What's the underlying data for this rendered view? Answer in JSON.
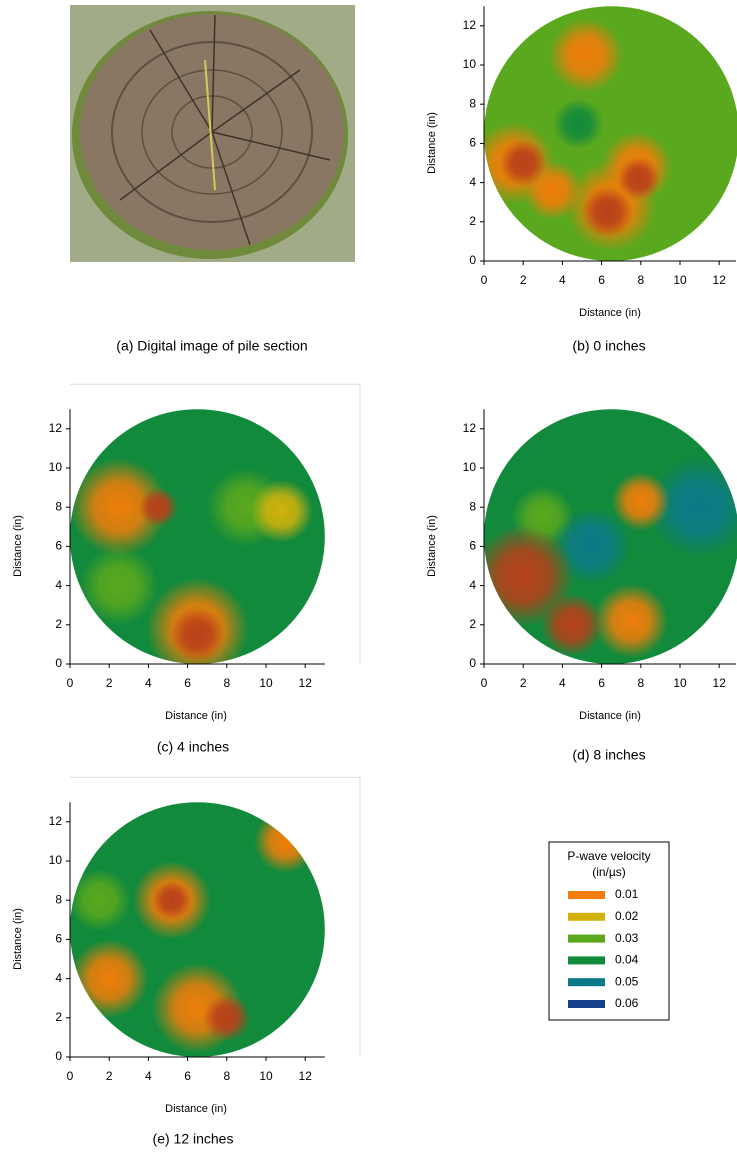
{
  "photo": {
    "caption": "(a) Digital image of pile section"
  },
  "chart_data": [
    {
      "type": "heatmap",
      "caption": "(b) 0 inches",
      "xlabel": "Distance (in)",
      "ylabel": "Distance (in)",
      "xlim": [
        0,
        13
      ],
      "ylim": [
        0,
        13
      ],
      "xticks": [
        0,
        2,
        4,
        6,
        8,
        10,
        12
      ],
      "yticks": [
        0,
        2,
        4,
        6,
        8,
        10,
        12
      ],
      "base_value": 0.03,
      "blobs": [
        {
          "x": 4.8,
          "y": 7,
          "r": 1.3,
          "value": 0.04
        },
        {
          "x": 5.2,
          "y": 10.5,
          "r": 1.9,
          "value": 0.01
        },
        {
          "x": 1.5,
          "y": 5,
          "r": 2.1,
          "value": 0.01
        },
        {
          "x": 3.5,
          "y": 3.6,
          "r": 1.5,
          "value": 0.01
        },
        {
          "x": 6.5,
          "y": 2.8,
          "r": 2.3,
          "value": 0.01
        },
        {
          "x": 7.8,
          "y": 4.8,
          "r": 1.8,
          "value": 0.01
        },
        {
          "x": 2,
          "y": 5,
          "r": 1.2,
          "value": 0.005
        },
        {
          "x": 6.3,
          "y": 2.5,
          "r": 1.3,
          "value": 0.005
        },
        {
          "x": 7.9,
          "y": 4.2,
          "r": 1.1,
          "value": 0.005
        }
      ]
    },
    {
      "type": "heatmap",
      "caption": "(c) 4 inches",
      "xlabel": "Distance (in)",
      "ylabel": "Distance (in)",
      "xlim": [
        0,
        13
      ],
      "ylim": [
        0,
        13
      ],
      "xticks": [
        0,
        2,
        4,
        6,
        8,
        10,
        12
      ],
      "yticks": [
        0,
        2,
        4,
        6,
        8,
        10,
        12
      ],
      "base_value": 0.04,
      "blobs": [
        {
          "x": 2.5,
          "y": 4,
          "r": 2,
          "value": 0.03
        },
        {
          "x": 9,
          "y": 8,
          "r": 2,
          "value": 0.03
        },
        {
          "x": 2.5,
          "y": 8,
          "r": 2.5,
          "value": 0.01
        },
        {
          "x": 10.8,
          "y": 7.8,
          "r": 1.6,
          "value": 0.02
        },
        {
          "x": 6.5,
          "y": 1.8,
          "r": 2.6,
          "value": 0.01
        },
        {
          "x": 4.5,
          "y": 8,
          "r": 1,
          "value": 0.005
        },
        {
          "x": 6.5,
          "y": 1.5,
          "r": 1.4,
          "value": 0.005
        }
      ]
    },
    {
      "type": "heatmap",
      "caption": "(d) 8 inches",
      "xlabel": "Distance (in)",
      "ylabel": "Distance (in)",
      "xlim": [
        0,
        13
      ],
      "ylim": [
        0,
        13
      ],
      "xticks": [
        0,
        2,
        4,
        6,
        8,
        10,
        12
      ],
      "yticks": [
        0,
        2,
        4,
        6,
        8,
        10,
        12
      ],
      "base_value": 0.04,
      "blobs": [
        {
          "x": 3,
          "y": 7.5,
          "r": 1.6,
          "value": 0.03
        },
        {
          "x": 11,
          "y": 8,
          "r": 2.6,
          "value": 0.05
        },
        {
          "x": 5.5,
          "y": 6,
          "r": 2,
          "value": 0.05
        },
        {
          "x": 7.5,
          "y": 2.2,
          "r": 1.9,
          "value": 0.01
        },
        {
          "x": 8,
          "y": 8.3,
          "r": 1.5,
          "value": 0.01
        },
        {
          "x": 2,
          "y": 4.5,
          "r": 2.6,
          "value": 0.005
        },
        {
          "x": 4.5,
          "y": 2,
          "r": 1.6,
          "value": 0.005
        }
      ]
    },
    {
      "type": "heatmap",
      "caption": "(e) 12 inches",
      "xlabel": "Distance (in)",
      "ylabel": "Distance (in)",
      "xlim": [
        0,
        13
      ],
      "ylim": [
        0,
        13
      ],
      "xticks": [
        0,
        2,
        4,
        6,
        8,
        10,
        12
      ],
      "yticks": [
        0,
        2,
        4,
        6,
        8,
        10,
        12
      ],
      "base_value": 0.04,
      "blobs": [
        {
          "x": 1.5,
          "y": 8,
          "r": 1.6,
          "value": 0.03
        },
        {
          "x": 5.2,
          "y": 8,
          "r": 2,
          "value": 0.01
        },
        {
          "x": 6.5,
          "y": 2.5,
          "r": 2.3,
          "value": 0.01
        },
        {
          "x": 2,
          "y": 4,
          "r": 2,
          "value": 0.01
        },
        {
          "x": 11,
          "y": 11,
          "r": 1.6,
          "value": 0.01
        },
        {
          "x": 5.2,
          "y": 8,
          "r": 1,
          "value": 0.005
        },
        {
          "x": 8,
          "y": 2,
          "r": 1.2,
          "value": 0.005
        }
      ]
    }
  ],
  "legend": {
    "title": [
      "P-wave velocity",
      "(in/µs)"
    ],
    "below_color": "#b8401a",
    "items": [
      {
        "value": 0.01,
        "color": "#f07d0a"
      },
      {
        "value": 0.02,
        "color": "#d2b20c"
      },
      {
        "value": 0.03,
        "color": "#5aa81e"
      },
      {
        "value": 0.04,
        "color": "#128a3c"
      },
      {
        "value": 0.05,
        "color": "#0b7a88"
      },
      {
        "value": 0.06,
        "color": "#163f8c"
      }
    ]
  }
}
